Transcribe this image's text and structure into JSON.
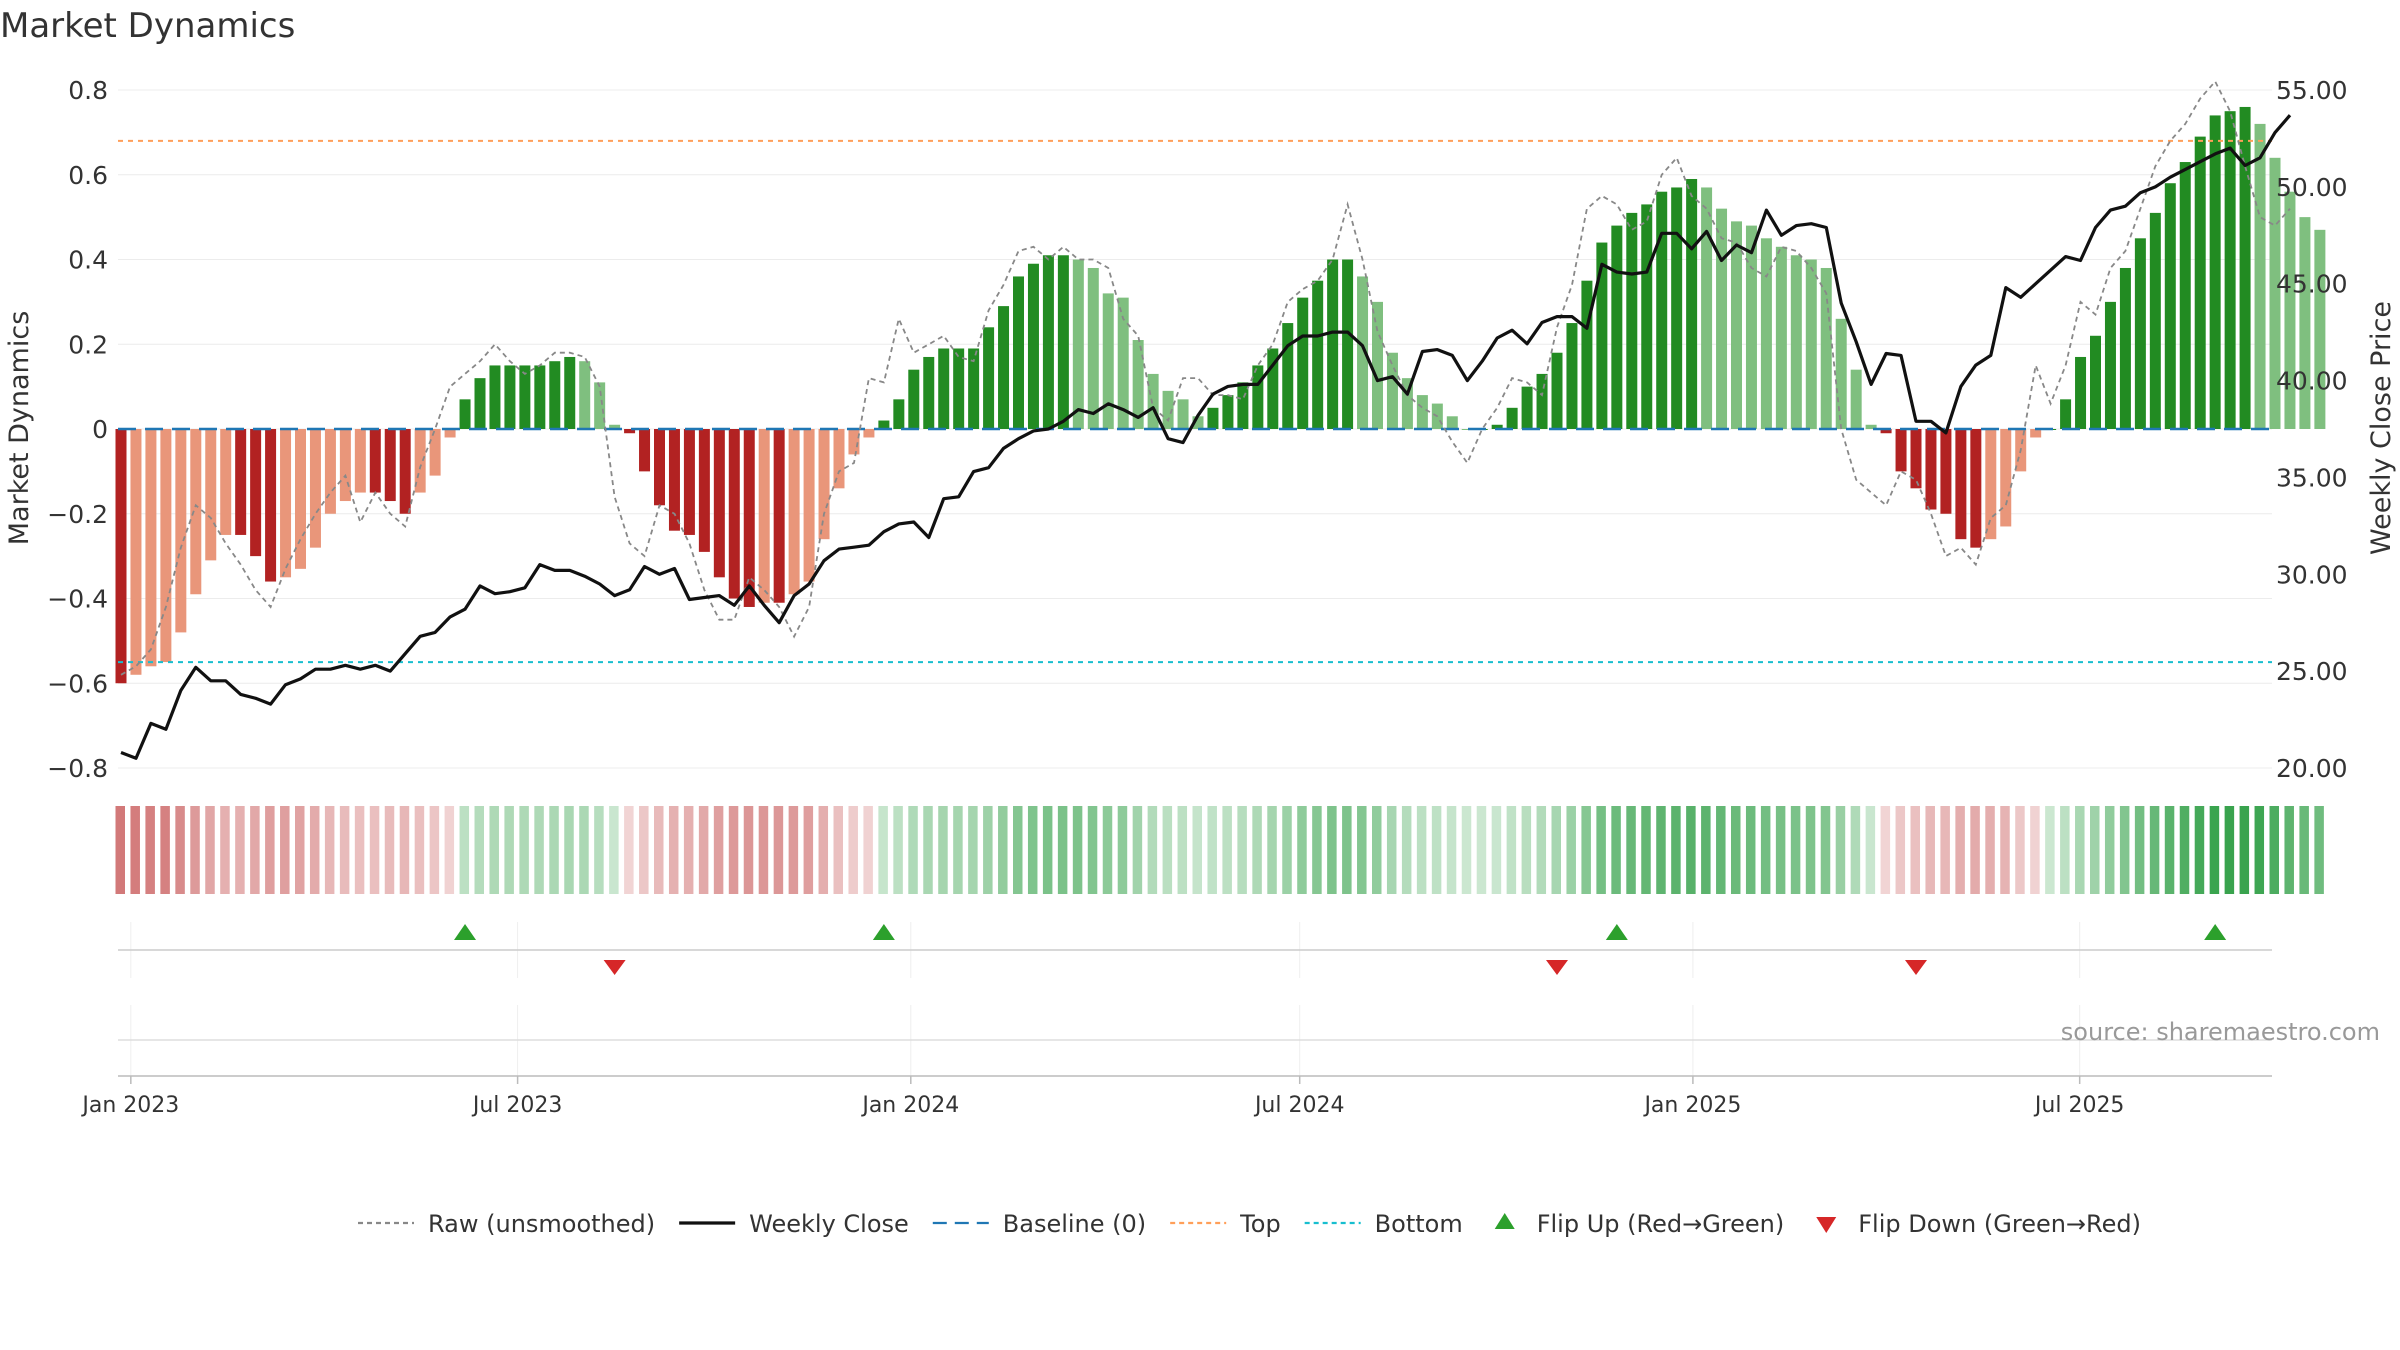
{
  "chart_data": {
    "type": "bar",
    "title": "Market Dynamics",
    "ylabel_left": "Market Dynamics",
    "ylabel_right": "Weekly Close Price",
    "source": "source: sharemaestro.com",
    "ylim_left": [
      -0.8,
      0.8
    ],
    "yticks_left": [
      "0.8",
      "0.6",
      "0.4",
      "0.2",
      "0",
      "−0.2",
      "−0.4",
      "−0.6",
      "−0.8"
    ],
    "ylim_right": [
      20,
      55
    ],
    "yticks_right": [
      "55.00",
      "50.00",
      "45.00",
      "40.00",
      "35.00",
      "30.00",
      "25.00",
      "20.00"
    ],
    "x_range": [
      "2022-12-26",
      "2025-09-29"
    ],
    "x_ticks": [
      {
        "date": "2023-01-01",
        "label": "Jan 2023"
      },
      {
        "date": "2023-07-01",
        "label": "Jul 2023"
      },
      {
        "date": "2024-01-01",
        "label": "Jan 2024"
      },
      {
        "date": "2024-07-01",
        "label": "Jul 2024"
      },
      {
        "date": "2025-01-01",
        "label": "Jan 2025"
      },
      {
        "date": "2025-07-01",
        "label": "Jul 2025"
      }
    ],
    "start_date": "2022-12-26",
    "week_step_days": 7,
    "top_level": 0.68,
    "bottom_level": -0.55,
    "baseline": 0,
    "momentum": [
      -0.6,
      -0.58,
      -0.56,
      -0.55,
      -0.48,
      -0.39,
      -0.31,
      -0.25,
      -0.25,
      -0.3,
      -0.36,
      -0.35,
      -0.33,
      -0.28,
      -0.2,
      -0.17,
      -0.15,
      -0.15,
      -0.17,
      -0.2,
      -0.15,
      -0.11,
      -0.02,
      0.07,
      0.12,
      0.15,
      0.15,
      0.15,
      0.15,
      0.16,
      0.17,
      0.16,
      0.11,
      0.01,
      -0.01,
      -0.1,
      -0.18,
      -0.24,
      -0.25,
      -0.29,
      -0.35,
      -0.4,
      -0.42,
      -0.41,
      -0.41,
      -0.39,
      -0.36,
      -0.26,
      -0.14,
      -0.06,
      -0.02,
      0.02,
      0.07,
      0.14,
      0.17,
      0.19,
      0.19,
      0.19,
      0.24,
      0.29,
      0.36,
      0.39,
      0.41,
      0.41,
      0.4,
      0.38,
      0.32,
      0.31,
      0.21,
      0.13,
      0.09,
      0.07,
      0.03,
      0.05,
      0.08,
      0.11,
      0.15,
      0.19,
      0.25,
      0.31,
      0.35,
      0.4,
      0.4,
      0.36,
      0.3,
      0.18,
      0.12,
      0.08,
      0.06,
      0.03,
      0.0,
      0.0,
      0.01,
      0.05,
      0.1,
      0.13,
      0.18,
      0.25,
      0.35,
      0.44,
      0.48,
      0.51,
      0.53,
      0.56,
      0.57,
      0.59,
      0.57,
      0.52,
      0.49,
      0.48,
      0.45,
      0.43,
      0.41,
      0.4,
      0.38,
      0.26,
      0.14,
      0.01,
      -0.01,
      -0.1,
      -0.14,
      -0.19,
      -0.2,
      -0.26,
      -0.28,
      -0.26,
      -0.23,
      -0.1,
      -0.02,
      0.0,
      0.07,
      0.17,
      0.22,
      0.3,
      0.38,
      0.45,
      0.51,
      0.58,
      0.63,
      0.69,
      0.74,
      0.75,
      0.76,
      0.72,
      0.64,
      0.56,
      0.5,
      0.47
    ],
    "raw": [
      -0.58,
      -0.56,
      -0.52,
      -0.42,
      -0.28,
      -0.18,
      -0.21,
      -0.27,
      -0.32,
      -0.38,
      -0.42,
      -0.33,
      -0.26,
      -0.2,
      -0.15,
      -0.11,
      -0.22,
      -0.15,
      -0.2,
      -0.23,
      -0.09,
      0.0,
      0.1,
      0.13,
      0.16,
      0.2,
      0.16,
      0.13,
      0.15,
      0.18,
      0.18,
      0.17,
      0.1,
      -0.16,
      -0.27,
      -0.3,
      -0.18,
      -0.2,
      -0.27,
      -0.38,
      -0.45,
      -0.45,
      -0.35,
      -0.38,
      -0.42,
      -0.49,
      -0.42,
      -0.2,
      -0.1,
      -0.08,
      0.12,
      0.11,
      0.26,
      0.18,
      0.2,
      0.22,
      0.17,
      0.16,
      0.28,
      0.34,
      0.42,
      0.43,
      0.4,
      0.43,
      0.4,
      0.4,
      0.38,
      0.26,
      0.22,
      0.05,
      0.02,
      0.12,
      0.12,
      0.08,
      0.08,
      0.07,
      0.15,
      0.2,
      0.3,
      0.33,
      0.35,
      0.4,
      0.53,
      0.4,
      0.23,
      0.15,
      0.08,
      0.05,
      0.03,
      -0.03,
      -0.08,
      0.0,
      0.05,
      0.12,
      0.11,
      0.08,
      0.24,
      0.34,
      0.52,
      0.55,
      0.53,
      0.47,
      0.49,
      0.6,
      0.64,
      0.55,
      0.52,
      0.45,
      0.44,
      0.38,
      0.36,
      0.43,
      0.42,
      0.38,
      0.32,
      0.0,
      -0.12,
      -0.15,
      -0.18,
      -0.1,
      -0.12,
      -0.2,
      -0.3,
      -0.28,
      -0.32,
      -0.21,
      -0.18,
      -0.05,
      0.15,
      0.06,
      0.15,
      0.3,
      0.27,
      0.38,
      0.42,
      0.52,
      0.62,
      0.68,
      0.72,
      0.78,
      0.82,
      0.75,
      0.62,
      0.5,
      0.48,
      0.52
    ],
    "weekly_close": [
      20.8,
      20.5,
      22.3,
      22.0,
      24.0,
      25.2,
      24.5,
      24.5,
      23.8,
      23.6,
      23.3,
      24.3,
      24.6,
      25.1,
      25.1,
      25.3,
      25.1,
      25.3,
      25.0,
      25.9,
      26.8,
      27.0,
      27.8,
      28.2,
      29.4,
      29.0,
      29.1,
      29.3,
      30.5,
      30.2,
      30.2,
      29.9,
      29.5,
      28.9,
      29.2,
      30.4,
      30.0,
      30.3,
      28.7,
      28.8,
      28.9,
      28.4,
      29.4,
      28.4,
      27.5,
      28.9,
      29.5,
      30.7,
      31.3,
      31.4,
      31.5,
      32.2,
      32.6,
      32.7,
      31.9,
      33.9,
      34.0,
      35.3,
      35.5,
      36.5,
      37.0,
      37.4,
      37.5,
      37.9,
      38.5,
      38.3,
      38.8,
      38.5,
      38.1,
      38.6,
      37.0,
      36.8,
      38.2,
      39.3,
      39.7,
      39.8,
      39.8,
      40.8,
      41.8,
      42.3,
      42.3,
      42.5,
      42.5,
      41.8,
      40.0,
      40.2,
      39.3,
      41.5,
      41.6,
      41.3,
      40.0,
      41.0,
      42.2,
      42.6,
      41.9,
      43.0,
      43.3,
      43.3,
      42.7,
      46.0,
      45.6,
      45.5,
      45.6,
      47.6,
      47.6,
      46.8,
      47.7,
      46.2,
      47.0,
      46.6,
      48.8,
      47.5,
      48.0,
      48.1,
      47.9,
      44.0,
      42.0,
      39.8,
      41.4,
      41.3,
      37.9,
      37.9,
      37.3,
      39.7,
      40.8,
      41.3,
      44.8,
      44.3,
      45.0,
      45.7,
      46.4,
      46.2,
      47.9,
      48.8,
      49.0,
      49.7,
      50.0,
      50.5,
      50.9,
      51.3,
      51.7,
      52.0,
      51.1,
      51.5,
      52.8,
      53.7
    ],
    "flip_up_indices": [
      23,
      51,
      100,
      140
    ],
    "flip_down_indices": [
      33,
      96,
      120
    ],
    "colors": {
      "strong_green": "#228b22",
      "weak_green": "#7fbf7f",
      "strong_red": "#b22222",
      "weak_red": "#e9967a",
      "raw": "#888888",
      "close": "#111111",
      "baseline": "#1f77b4",
      "top": "#ff9f59",
      "bottom": "#17becf",
      "flip_up": "#2ca02c",
      "flip_down": "#d62728",
      "strip_green": "#2e9e44",
      "strip_red": "#c85a5a"
    },
    "legend": [
      {
        "label": "Raw (unsmoothed)",
        "kind": "dotted-line",
        "color": "#888888"
      },
      {
        "label": "Weekly Close",
        "kind": "solid-line",
        "color": "#111111"
      },
      {
        "label": "Baseline (0)",
        "kind": "dashed-line",
        "color": "#1f77b4"
      },
      {
        "label": "Top",
        "kind": "dotted-line",
        "color": "#ff9f59"
      },
      {
        "label": "Bottom",
        "kind": "dotted-line",
        "color": "#17becf"
      },
      {
        "label": "Flip Up (Red→Green)",
        "kind": "triangle-up",
        "color": "#2ca02c"
      },
      {
        "label": "Flip Down (Green→Red)",
        "kind": "triangle-down",
        "color": "#d62728"
      }
    ]
  }
}
